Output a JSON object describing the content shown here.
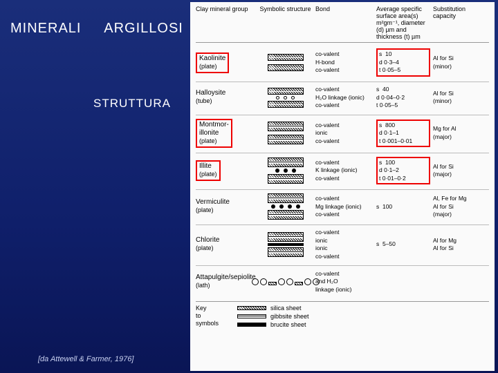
{
  "title": {
    "w1": "MINERALI",
    "w2": "ARGILLOSI"
  },
  "subtitle": "STRUTTURA",
  "citation": "[da Attewell & Farmer, 1976]",
  "headers": {
    "c1": "Clay mineral group",
    "c2": "Symbolic structure",
    "c3": "Bond",
    "c4": "Average specific surface area(s) m²gm⁻¹, diameter (d) µm and thickness (t) µm",
    "c5": "Substitution capacity"
  },
  "rows": [
    {
      "name": "Kaolinite",
      "shape": "(plate)",
      "boxed": true,
      "bond": "co-valent<br>H-bond<br>co-valent",
      "surf": "s&nbsp;&nbsp;10<br>d&nbsp;0·3–4<br>t&nbsp;0·05–5",
      "surf_boxed": true,
      "sub": "Al for Si<br>(minor)",
      "sym": "kaolinite"
    },
    {
      "name": "Halloysite",
      "shape": "(tube)",
      "boxed": false,
      "bond": "co-valent<br>H₂O linkage (ionic)<br>co-valent",
      "surf": "s&nbsp;&nbsp;40<br>d&nbsp;0·04–0·2<br>t&nbsp;0·05–5",
      "sub": "Al for Si<br>(minor)",
      "sym": "halloysite"
    },
    {
      "name": "Montmor-<br>illonite",
      "shape": "(plate)",
      "boxed": true,
      "bond": "co-valent<br>ionic<br>co-valent",
      "surf": "s&nbsp;&nbsp;800<br>d&nbsp;0·1–1<br>t&nbsp;0·001–0·01",
      "surf_boxed": true,
      "sub": "Mg for Al<br>(major)",
      "sym": "mont"
    },
    {
      "name": "Illite",
      "shape": "(plate)",
      "boxed": true,
      "bond": "co-valent<br>K linkage (ionic)<br>co-valent",
      "surf": "s&nbsp;&nbsp;100<br>d&nbsp;0·1–2<br>t&nbsp;0·01–0·2",
      "surf_boxed": true,
      "sub": "Al for Si<br>(major)",
      "sym": "illite"
    },
    {
      "name": "Vermiculite",
      "shape": "(plate)",
      "boxed": false,
      "bond": "co-valent<br>Mg linkage (ionic)<br>co-valent",
      "surf": "s&nbsp;&nbsp;100",
      "sub": "Al, Fe for Mg<br>Al for Si<br>(major)",
      "sym": "verm"
    },
    {
      "name": "Chlorite",
      "shape": "(plate)",
      "boxed": false,
      "bond": "co-valent<br>ionic<br>ionic<br>co-valent",
      "surf": "s&nbsp;&nbsp;5–50",
      "sub": "Al for Mg<br>Al for Si",
      "sym": "chlorite"
    },
    {
      "name": "Attapulgite/sepiolite",
      "shape": "(lath)",
      "boxed": false,
      "bond": "co-valent<br>and H₂O<br>linkage (ionic)",
      "surf": "",
      "sub": "",
      "sym": "lath"
    }
  ],
  "key": {
    "label": "Key<br>to<br>symbols",
    "items": [
      {
        "label": "silica sheet",
        "cls": ""
      },
      {
        "label": "gibbsite sheet",
        "cls": "gibbsite"
      },
      {
        "label": "brucite sheet",
        "cls": "brucite"
      }
    ]
  }
}
